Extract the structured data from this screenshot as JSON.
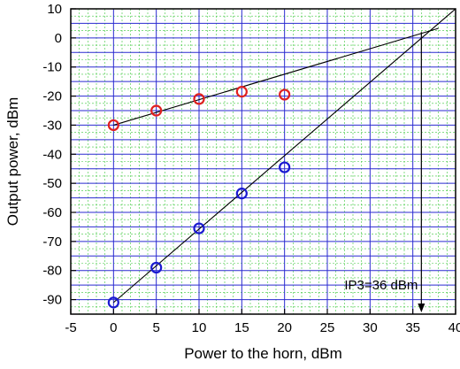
{
  "chart_data": {
    "type": "scatter",
    "xlabel": "Power to the horn, dBm",
    "ylabel": "Output power, dBm",
    "xlim": [
      -5,
      40
    ],
    "ylim": [
      -95,
      10
    ],
    "x_major_ticks": [
      -5,
      0,
      5,
      10,
      15,
      20,
      25,
      30,
      35,
      40
    ],
    "y_major_ticks": [
      -90,
      -80,
      -70,
      -60,
      -50,
      -40,
      -30,
      -20,
      -10,
      0,
      10
    ],
    "x_tick_labels": [
      "-5",
      "0",
      "5",
      "10",
      "15",
      "20",
      "25",
      "30",
      "35",
      "40"
    ],
    "y_tick_labels": [
      "-90",
      "-80",
      "-70",
      "-60",
      "-50",
      "-40",
      "-30",
      "-20",
      "-10",
      "0",
      "10"
    ],
    "grid": {
      "major": true,
      "minor": true,
      "major_color": "#2a2ad0",
      "minor_color": "#3cc83c"
    },
    "series": [
      {
        "color": "#e02020",
        "marker": "open-circle",
        "x": [
          0,
          5,
          10,
          15,
          20
        ],
        "y": [
          -30,
          -25,
          -21,
          -18.5,
          -19.5
        ]
      },
      {
        "color": "#1a1ad0",
        "marker": "open-circle",
        "x": [
          0,
          5,
          10,
          15,
          20
        ],
        "y": [
          -91,
          -79,
          -65.5,
          -53.5,
          -44.5
        ]
      }
    ],
    "fit_lines": [
      {
        "color": "#000000",
        "x": [
          0,
          38
        ],
        "y": [
          -30,
          3.3
        ]
      },
      {
        "color": "#000000",
        "x": [
          0,
          40
        ],
        "y": [
          -91,
          10
        ]
      }
    ],
    "annotation": {
      "text": "IP3=36 dBm",
      "x": 36,
      "arrow_from_y": 2,
      "arrow_to_y": -95
    }
  }
}
